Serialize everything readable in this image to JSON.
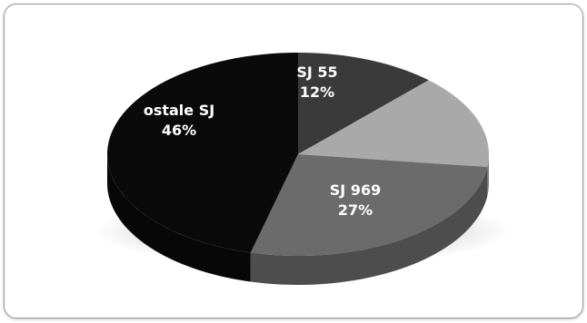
{
  "chart_data": {
    "type": "pie",
    "style": "3d",
    "title": "",
    "slices": [
      {
        "label": "SJ 55",
        "value": 12,
        "display": "12%",
        "color": "#3a3a3a",
        "show_label": true
      },
      {
        "label": "",
        "value": 15,
        "display": "",
        "color": "#a9a9a9",
        "show_label": false
      },
      {
        "label": "SJ 969",
        "value": 27,
        "display": "27%",
        "color": "#6b6b6b",
        "show_label": true
      },
      {
        "label": "ostale SJ",
        "value": 46,
        "display": "46%",
        "color": "#0a0a0a",
        "show_label": true
      }
    ],
    "start_angle_deg": 0,
    "direction": "clockwise",
    "legend": "none"
  }
}
